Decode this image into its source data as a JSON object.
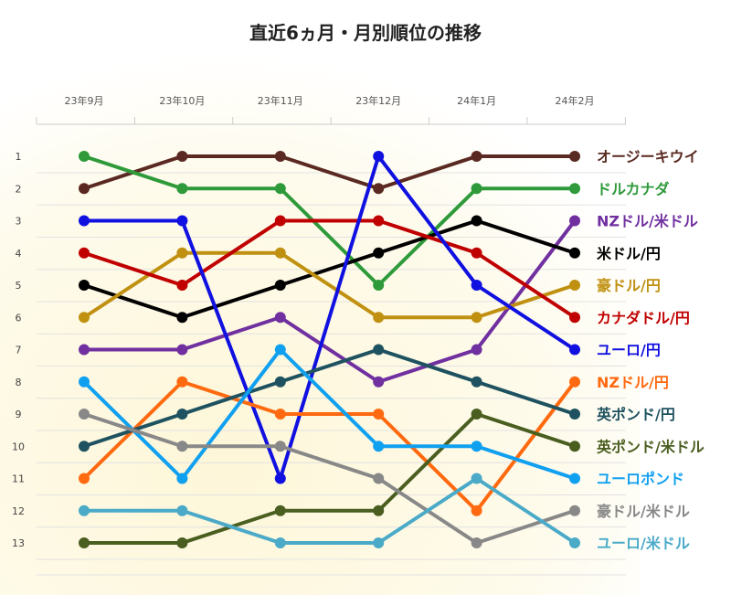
{
  "chart_data": {
    "type": "line",
    "title": "直近6ヵ月・月別順位の推移",
    "categories": [
      "23年9月",
      "23年10月",
      "23年11月",
      "23年12月",
      "24年1月",
      "24年2月"
    ],
    "y_ticks": [
      "1",
      "2",
      "3",
      "4",
      "5",
      "6",
      "7",
      "8",
      "9",
      "10",
      "11",
      "12",
      "13"
    ],
    "ylim": [
      1,
      13
    ],
    "y_inverted": true,
    "grid": "horizontal",
    "legend": "right-end labels",
    "series": [
      {
        "name": "オージーキウイ",
        "color": "#5a2a22",
        "values": [
          2,
          1,
          1,
          2,
          1,
          1
        ]
      },
      {
        "name": "ドルカナダ",
        "color": "#2e9a3a",
        "values": [
          1,
          2,
          2,
          5,
          2,
          2
        ]
      },
      {
        "name": "NZドル/米ドル",
        "color": "#7030a0",
        "values": [
          7,
          7,
          6,
          8,
          7,
          3
        ]
      },
      {
        "name": "米ドル/円",
        "color": "#000000",
        "values": [
          5,
          6,
          5,
          4,
          3,
          4
        ]
      },
      {
        "name": "豪ドル/円",
        "color": "#c09010",
        "values": [
          6,
          4,
          4,
          6,
          6,
          5
        ]
      },
      {
        "name": "カナダドル/円",
        "color": "#c00000",
        "values": [
          4,
          5,
          3,
          3,
          4,
          6
        ]
      },
      {
        "name": "ユーロ/円",
        "color": "#1010e0",
        "values": [
          3,
          3,
          11,
          1,
          5,
          7
        ]
      },
      {
        "name": "NZドル/円",
        "color": "#ff6a10",
        "values": [
          11,
          8,
          9,
          9,
          12,
          8
        ]
      },
      {
        "name": "英ポンド/円",
        "color": "#1f5260",
        "values": [
          10,
          9,
          8,
          7,
          8,
          9
        ]
      },
      {
        "name": "英ポンド/米ドル",
        "color": "#4a5e20",
        "values": [
          13,
          13,
          12,
          12,
          9,
          10
        ]
      },
      {
        "name": "ユーロポンド",
        "color": "#10a0f0",
        "values": [
          8,
          11,
          7,
          10,
          10,
          11
        ]
      },
      {
        "name": "豪ドル/米ドル",
        "color": "#888888",
        "values": [
          9,
          10,
          10,
          11,
          13,
          12
        ]
      },
      {
        "name": "ユーロ/米ドル",
        "color": "#4aaac8",
        "values": [
          12,
          12,
          13,
          13,
          11,
          13
        ]
      }
    ]
  },
  "colors": {
    "background_glow": "#fdf6d8",
    "grid": "#dddddd"
  }
}
